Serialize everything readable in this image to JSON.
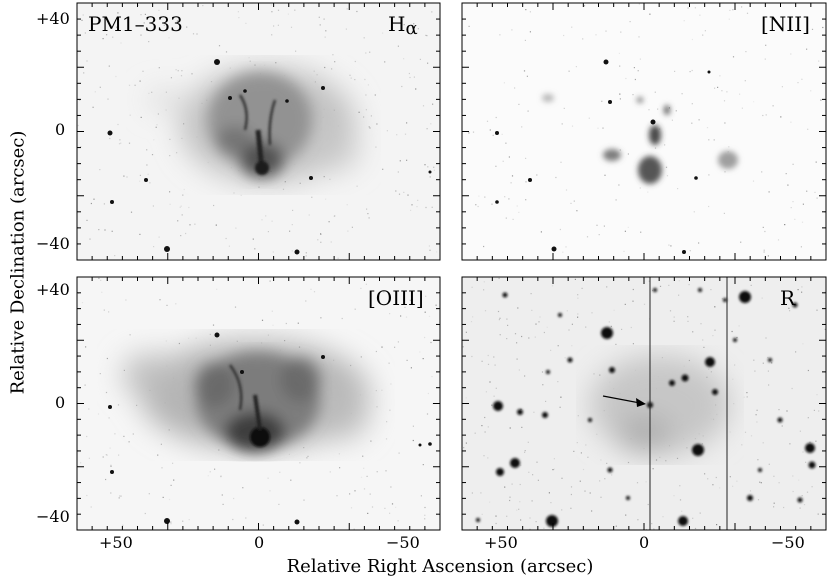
{
  "figure": {
    "object_label": "PM1–333",
    "panels": [
      {
        "id": "halpha",
        "label_main": "H",
        "label_sub": "α",
        "display": "Hα"
      },
      {
        "id": "nii",
        "label_main": "[NII]"
      },
      {
        "id": "oiii",
        "label_main": "[OIII]"
      },
      {
        "id": "r",
        "label_main": "R"
      }
    ],
    "y_ticks": [
      "+40",
      "0",
      "−40",
      "+40",
      "0",
      "−40"
    ],
    "x_ticks": [
      "+50",
      "0",
      "−50",
      "+50",
      "0",
      "−50"
    ],
    "y_axis_title": "Relative Declination (arcsec)",
    "x_axis_title": "Relative Right Ascension (arcsec)"
  },
  "colors": {
    "background": "#ffffff",
    "frame": "#000000",
    "nebula_dark": "#1a1a1a",
    "noise_gray": "#808080"
  }
}
